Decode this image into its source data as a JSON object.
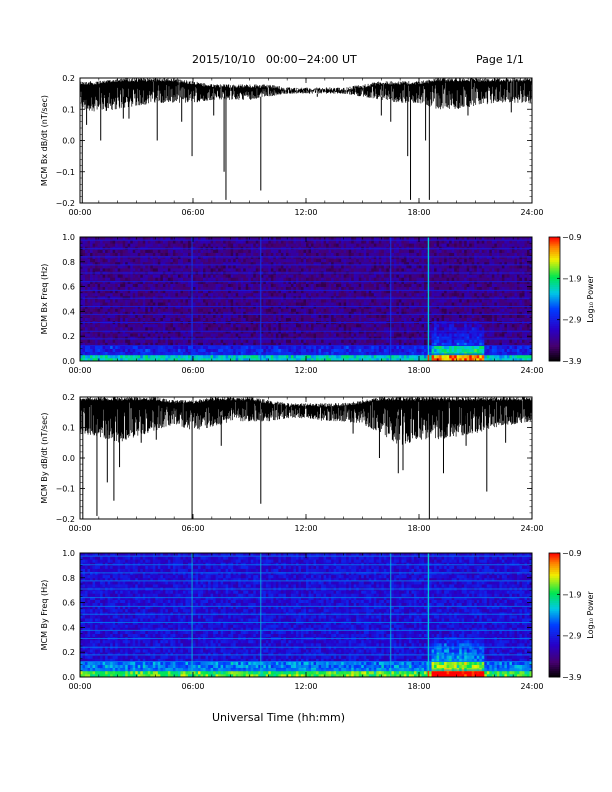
{
  "header": {
    "title": "2015/10/10   00:00−24:00 UT",
    "page": "Page 1/1"
  },
  "x_axis_label": "Universal Time (hh:mm)",
  "chart_data": [
    {
      "type": "line",
      "ylabel": "MCM Bx dB/dt (nT/sec)",
      "xlim": [
        "00:00",
        "24:00"
      ],
      "ylim": [
        -0.2,
        0.2
      ],
      "x_ticks": [
        "00:00",
        "06:00",
        "12:00",
        "18:00",
        "24:00"
      ],
      "y_ticks": [
        "0.2",
        "0.1",
        "0.0",
        "−0.1",
        "−0.2"
      ],
      "y_tick_values": [
        0.2,
        0.1,
        0.0,
        -0.1,
        -0.2
      ],
      "baseline_top_by_hour": [
        0.19,
        0.19,
        0.2,
        0.2,
        0.2,
        0.2,
        0.19,
        0.18,
        0.18,
        0.18,
        0.18,
        0.17,
        0.17,
        0.17,
        0.17,
        0.18,
        0.19,
        0.19,
        0.19,
        0.2,
        0.2,
        0.2,
        0.2,
        0.2,
        0.2
      ],
      "baseline_bottom_by_hour": [
        0.1,
        0.09,
        0.1,
        0.11,
        0.12,
        0.12,
        0.12,
        0.13,
        0.13,
        0.13,
        0.14,
        0.15,
        0.15,
        0.15,
        0.15,
        0.14,
        0.13,
        0.12,
        0.12,
        0.1,
        0.1,
        0.11,
        0.12,
        0.12,
        0.12
      ],
      "spikes": [
        {
          "t": 0.12,
          "min": -0.2
        },
        {
          "t": 0.35,
          "min": 0.05
        },
        {
          "t": 1.1,
          "min": 0.0
        },
        {
          "t": 2.3,
          "min": 0.07
        },
        {
          "t": 2.6,
          "min": 0.07
        },
        {
          "t": 4.1,
          "min": 0.0
        },
        {
          "t": 5.4,
          "min": 0.06
        },
        {
          "t": 5.95,
          "min": -0.05
        },
        {
          "t": 7.1,
          "min": 0.08
        },
        {
          "t": 7.65,
          "min": -0.1
        },
        {
          "t": 7.75,
          "min": -0.19
        },
        {
          "t": 9.6,
          "min": -0.16
        },
        {
          "t": 12.6,
          "min": 0.15
        },
        {
          "t": 16.0,
          "min": 0.08
        },
        {
          "t": 16.5,
          "min": 0.06
        },
        {
          "t": 17.4,
          "min": -0.05
        },
        {
          "t": 17.55,
          "min": -0.19
        },
        {
          "t": 18.55,
          "min": -0.19
        },
        {
          "t": 18.35,
          "min": 0.0
        },
        {
          "t": 20.6,
          "min": 0.08
        },
        {
          "t": 22.9,
          "min": 0.09
        }
      ]
    },
    {
      "type": "heatmap",
      "ylabel": "MCM Bx Freq (Hz)",
      "xlim": [
        "00:00",
        "24:00"
      ],
      "ylim": [
        0.0,
        1.0
      ],
      "x_ticks": [
        "00:00",
        "06:00",
        "12:00",
        "18:00",
        "24:00"
      ],
      "y_ticks": [
        "1.0",
        "0.8",
        "0.6",
        "0.4",
        "0.2",
        "0.0"
      ],
      "y_tick_values": [
        1.0,
        0.8,
        0.6,
        0.4,
        0.2,
        0.0
      ],
      "harmonic_freqs": [
        0.055,
        0.125,
        0.178,
        0.24,
        0.31,
        0.376,
        0.44,
        0.506,
        0.57,
        0.64,
        0.71,
        0.775,
        0.84,
        0.905,
        0.975
      ],
      "vertical_lines_hours": [
        5.95,
        9.6,
        16.5
      ],
      "event_line_hour": 18.5,
      "burst": {
        "start_hour": 18.6,
        "end_hour": 21.5,
        "max_freq": 0.33
      },
      "colorbar": {
        "label": "Log₁₀ Power",
        "ticks": [
          "−0.9",
          "−1.9",
          "−2.9",
          "−3.9"
        ],
        "tick_values": [
          -0.9,
          -1.9,
          -2.9,
          -3.9
        ],
        "range": [
          -3.9,
          -0.9
        ]
      },
      "background_level": -3.4
    },
    {
      "type": "line",
      "ylabel": "MCM By dB/dt (nT/sec)",
      "xlim": [
        "00:00",
        "24:00"
      ],
      "ylim": [
        -0.2,
        0.2
      ],
      "x_ticks": [
        "00:00",
        "06:00",
        "12:00",
        "18:00",
        "24:00"
      ],
      "y_ticks": [
        "0.2",
        "0.1",
        "0.0",
        "−0.1",
        "−0.2"
      ],
      "y_tick_values": [
        0.2,
        0.1,
        0.0,
        -0.1,
        -0.2
      ],
      "baseline_top_by_hour": [
        0.2,
        0.2,
        0.2,
        0.2,
        0.2,
        0.19,
        0.19,
        0.2,
        0.2,
        0.2,
        0.19,
        0.18,
        0.18,
        0.18,
        0.18,
        0.19,
        0.2,
        0.2,
        0.2,
        0.2,
        0.2,
        0.2,
        0.2,
        0.2,
        0.2
      ],
      "baseline_bottom_by_hour": [
        0.08,
        0.07,
        0.05,
        0.07,
        0.09,
        0.11,
        0.09,
        0.1,
        0.12,
        0.12,
        0.12,
        0.13,
        0.13,
        0.12,
        0.12,
        0.11,
        0.08,
        0.04,
        0.06,
        0.06,
        0.07,
        0.08,
        0.1,
        0.11,
        0.12
      ],
      "spikes": [
        {
          "t": 0.15,
          "min": -0.2
        },
        {
          "t": 0.9,
          "min": -0.19
        },
        {
          "t": 1.45,
          "min": -0.08
        },
        {
          "t": 1.8,
          "min": -0.14
        },
        {
          "t": 2.1,
          "min": -0.03
        },
        {
          "t": 3.25,
          "min": 0.05
        },
        {
          "t": 4.05,
          "min": 0.06
        },
        {
          "t": 5.95,
          "min": -0.2
        },
        {
          "t": 7.5,
          "min": 0.04
        },
        {
          "t": 9.6,
          "min": -0.15
        },
        {
          "t": 14.5,
          "min": 0.08
        },
        {
          "t": 15.9,
          "min": 0.0
        },
        {
          "t": 16.9,
          "min": -0.05
        },
        {
          "t": 17.15,
          "min": -0.04
        },
        {
          "t": 18.55,
          "min": -0.2
        },
        {
          "t": 19.3,
          "min": -0.05
        },
        {
          "t": 20.5,
          "min": 0.04
        },
        {
          "t": 21.6,
          "min": -0.11
        },
        {
          "t": 22.6,
          "min": 0.05
        }
      ]
    },
    {
      "type": "heatmap",
      "ylabel": "MCM By Freq (Hz)",
      "xlim": [
        "00:00",
        "24:00"
      ],
      "ylim": [
        0.0,
        1.0
      ],
      "x_ticks": [
        "00:00",
        "06:00",
        "12:00",
        "18:00",
        "24:00"
      ],
      "y_ticks": [
        "1.0",
        "0.8",
        "0.6",
        "0.4",
        "0.2",
        "0.0"
      ],
      "y_tick_values": [
        1.0,
        0.8,
        0.6,
        0.4,
        0.2,
        0.0
      ],
      "harmonic_freqs": [
        0.055,
        0.125,
        0.178,
        0.24,
        0.31,
        0.376,
        0.44,
        0.506,
        0.57,
        0.64,
        0.71,
        0.775,
        0.84,
        0.905,
        0.975
      ],
      "vertical_lines_hours": [
        5.95,
        9.6,
        16.5
      ],
      "event_line_hour": 18.5,
      "burst": {
        "start_hour": 18.6,
        "end_hour": 21.5,
        "max_freq": 0.33
      },
      "colorbar": {
        "label": "Log₁₀ Power",
        "ticks": [
          "−0.9",
          "−1.9",
          "−2.9",
          "−3.9"
        ],
        "tick_values": [
          -0.9,
          -1.9,
          -2.9,
          -3.9
        ],
        "range": [
          -3.9,
          -0.9
        ]
      },
      "background_level": -3.0
    }
  ]
}
